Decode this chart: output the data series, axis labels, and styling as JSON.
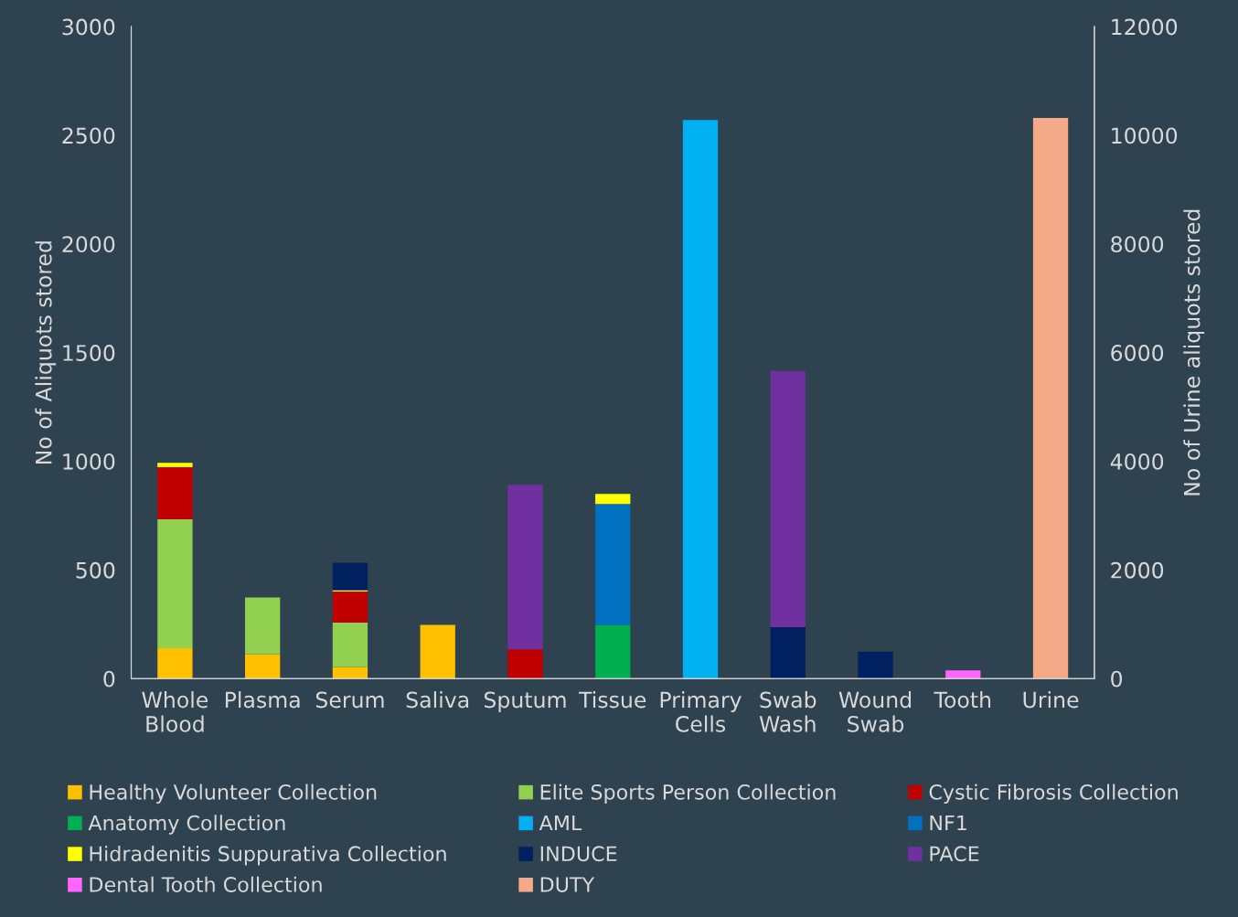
{
  "chart_data": {
    "type": "bar",
    "stacked": true,
    "legend": "bottom",
    "grid": false,
    "ylabel": "No of Aliquots stored",
    "y2label": "No of Urine aliquots stored",
    "categories": [
      "Whole\nBlood",
      "Plasma",
      "Serum",
      "Saliva",
      "Sputum",
      "Tissue",
      "Primary\nCells",
      "Swab\nWash",
      "Wound\nSwab",
      "Tooth",
      "Urine"
    ],
    "ylim": [
      0,
      3000
    ],
    "yticks": [
      0,
      500,
      1000,
      1500,
      2000,
      2500,
      3000
    ],
    "y2lim": [
      0,
      12000
    ],
    "y2ticks": [
      0,
      2000,
      4000,
      6000,
      8000,
      10000,
      12000
    ],
    "series": [
      {
        "name": "Healthy Volunteer Collection",
        "color": "#ffc000",
        "values": [
          140,
          112,
          53,
          247,
          null,
          null,
          null,
          null,
          null,
          null,
          null
        ]
      },
      {
        "name": "Elite Sports Person Collection",
        "color": "#92d050",
        "values": [
          593,
          261,
          205,
          null,
          null,
          null,
          null,
          null,
          null,
          null,
          null
        ]
      },
      {
        "name": "Cystic Fibrosis Collection",
        "color": "#c00000",
        "values": [
          240,
          null,
          143,
          null,
          135,
          null,
          null,
          null,
          null,
          null,
          null
        ]
      },
      {
        "name": "Anatomy Collection",
        "color": "#00b050",
        "values": [
          null,
          null,
          null,
          null,
          null,
          247,
          null,
          null,
          null,
          null,
          null
        ]
      },
      {
        "name": "AML",
        "color": "#00b0f0",
        "values": [
          null,
          null,
          null,
          null,
          null,
          null,
          2570,
          null,
          null,
          null,
          null
        ]
      },
      {
        "name": "NF1",
        "color": "#0070c0",
        "values": [
          null,
          null,
          null,
          null,
          null,
          556,
          null,
          null,
          null,
          null,
          null
        ]
      },
      {
        "name": "Hidradenitis Suppurativa Collection",
        "color": "#ffff00",
        "values": [
          20,
          null,
          6,
          null,
          null,
          47,
          null,
          null,
          null,
          null,
          null
        ]
      },
      {
        "name": "INDUCE",
        "color": "#002060",
        "values": [
          null,
          null,
          126,
          null,
          null,
          null,
          null,
          236,
          124,
          null,
          null
        ]
      },
      {
        "name": "PACE",
        "color": "#7030a0",
        "values": [
          null,
          null,
          null,
          null,
          757,
          null,
          null,
          1179,
          null,
          null,
          null
        ]
      },
      {
        "name": "Dental Tooth Collection",
        "color": "#ff66ff",
        "values": [
          null,
          null,
          null,
          null,
          null,
          null,
          null,
          null,
          null,
          38,
          null
        ]
      },
      {
        "name": "DUTY",
        "color": "#f4a988",
        "axis": "y2",
        "values": [
          null,
          null,
          null,
          null,
          null,
          null,
          null,
          null,
          null,
          null,
          10320
        ]
      }
    ]
  }
}
